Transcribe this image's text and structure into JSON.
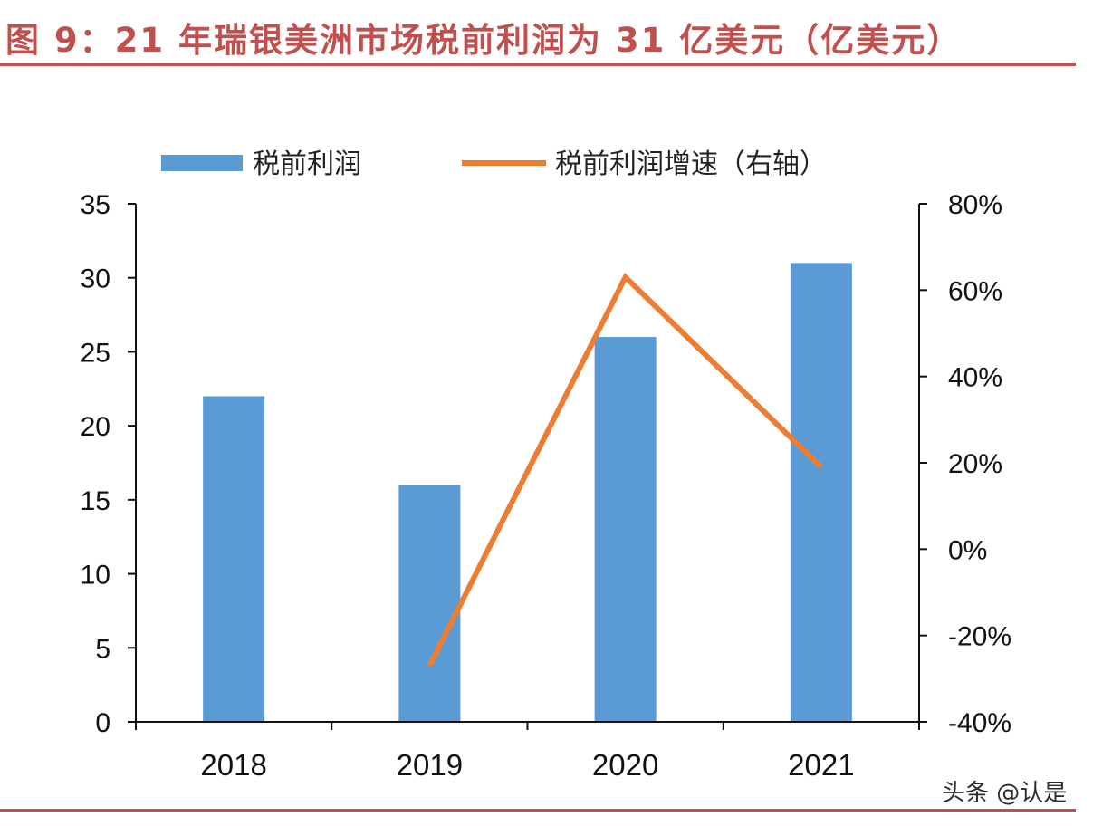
{
  "title": "图 9：21 年瑞银美洲市场税前利润为 31 亿美元（亿美元）",
  "watermark": "头条 @认是",
  "chart_data": {
    "type": "bar",
    "categories": [
      "2018",
      "2019",
      "2020",
      "2021"
    ],
    "series": [
      {
        "name": "税前利润",
        "kind": "bar",
        "axis": "left",
        "color": "#5b9bd5",
        "values": [
          22,
          16,
          26,
          31
        ]
      },
      {
        "name": "税前利润增速（右轴）",
        "kind": "line",
        "axis": "right",
        "color": "#ed7d31",
        "values": [
          null,
          -27,
          63,
          19
        ]
      }
    ],
    "left_axis": {
      "min": 0,
      "max": 35,
      "step": 5,
      "ticks": [
        "0",
        "5",
        "10",
        "15",
        "20",
        "25",
        "30",
        "35"
      ]
    },
    "right_axis": {
      "min": -40,
      "max": 80,
      "step": 20,
      "ticks": [
        "-40%",
        "-20%",
        "0%",
        "20%",
        "40%",
        "60%",
        "80%"
      ]
    },
    "legend_position": "top"
  }
}
